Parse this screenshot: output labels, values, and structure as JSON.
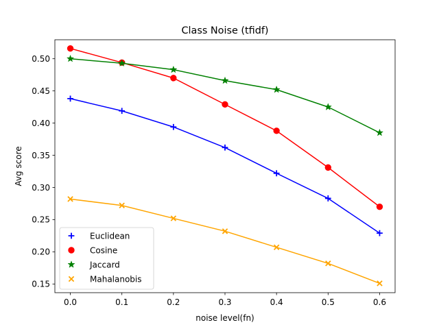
{
  "chart_data": {
    "type": "line",
    "title": "Class Noise (tfidf)",
    "xlabel": "noise level(fn)",
    "ylabel": "Avg score",
    "x": [
      0.0,
      0.1,
      0.2,
      0.3,
      0.4,
      0.5,
      0.6
    ],
    "xlim": [
      -0.03,
      0.63
    ],
    "ylim": [
      0.1365,
      0.5295
    ],
    "x_ticks": [
      "0.0",
      "0.1",
      "0.2",
      "0.3",
      "0.4",
      "0.5",
      "0.6"
    ],
    "y_ticks": [
      "0.15",
      "0.20",
      "0.25",
      "0.30",
      "0.35",
      "0.40",
      "0.45",
      "0.50"
    ],
    "grid": false,
    "legend_position": "lower-left",
    "series": [
      {
        "name": "Euclidean",
        "color": "#0000ff",
        "marker": "plus",
        "values": [
          0.438,
          0.419,
          0.394,
          0.362,
          0.322,
          0.283,
          0.229
        ]
      },
      {
        "name": "Cosine",
        "color": "#ff0000",
        "marker": "circle",
        "values": [
          0.516,
          0.494,
          0.47,
          0.429,
          0.388,
          0.331,
          0.27
        ]
      },
      {
        "name": "Jaccard",
        "color": "#008000",
        "marker": "star",
        "values": [
          0.5,
          0.493,
          0.483,
          0.466,
          0.452,
          0.425,
          0.385
        ]
      },
      {
        "name": "Mahalanobis",
        "color": "#ffa500",
        "marker": "x",
        "values": [
          0.282,
          0.272,
          0.252,
          0.232,
          0.207,
          0.182,
          0.151
        ]
      }
    ]
  }
}
